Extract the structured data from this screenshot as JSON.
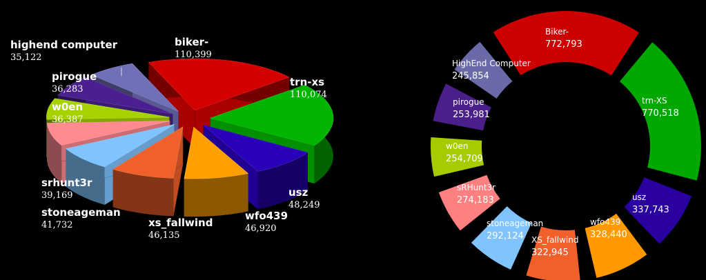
{
  "chart_data": [
    {
      "type": "pie",
      "style": "3d-exploded-wedges",
      "categories": [
        "biker-",
        "trn-xs",
        "usz",
        "wfo439",
        "xs_fallwind",
        "stoneageman",
        "srhunt3r",
        "w0en",
        "pirogue",
        "highend computer"
      ],
      "values": [
        110399,
        110074,
        48249,
        46920,
        46135,
        41732,
        39169,
        36387,
        36283,
        35122
      ],
      "value_labels": [
        "110,399",
        "110,074",
        "48,249",
        "46,920",
        "46,135",
        "41,732",
        "39,169",
        "36,387",
        "36,283",
        "35,122"
      ],
      "colors": [
        "#d40000",
        "#00b400",
        "#2a00b8",
        "#ffa000",
        "#f0602a",
        "#80c4ff",
        "#ff8a90",
        "#a6d200",
        "#4a2090",
        "#7070b8"
      ]
    },
    {
      "type": "pie",
      "style": "donut",
      "categories": [
        "Biker-",
        "trn-XS",
        "usz",
        "wfo439",
        "XS_fallwind",
        "stoneageman",
        "sRHunt3r",
        "w0en",
        "pirogue",
        "HighEnd Computer"
      ],
      "values": [
        772793,
        770518,
        337743,
        328440,
        322945,
        292124,
        274183,
        254709,
        253981,
        245854
      ],
      "value_labels": [
        "772,793",
        "770,518",
        "337,743",
        "328,440",
        "322,945",
        "292,124",
        "274,183",
        "254,709",
        "253,981",
        "245,854"
      ],
      "colors": [
        "#cc0000",
        "#00a800",
        "#2a00a0",
        "#ff9900",
        "#f0602a",
        "#80c4ff",
        "#ff8080",
        "#a6cc00",
        "#4a1f8a",
        "#6a6aa8"
      ]
    }
  ]
}
